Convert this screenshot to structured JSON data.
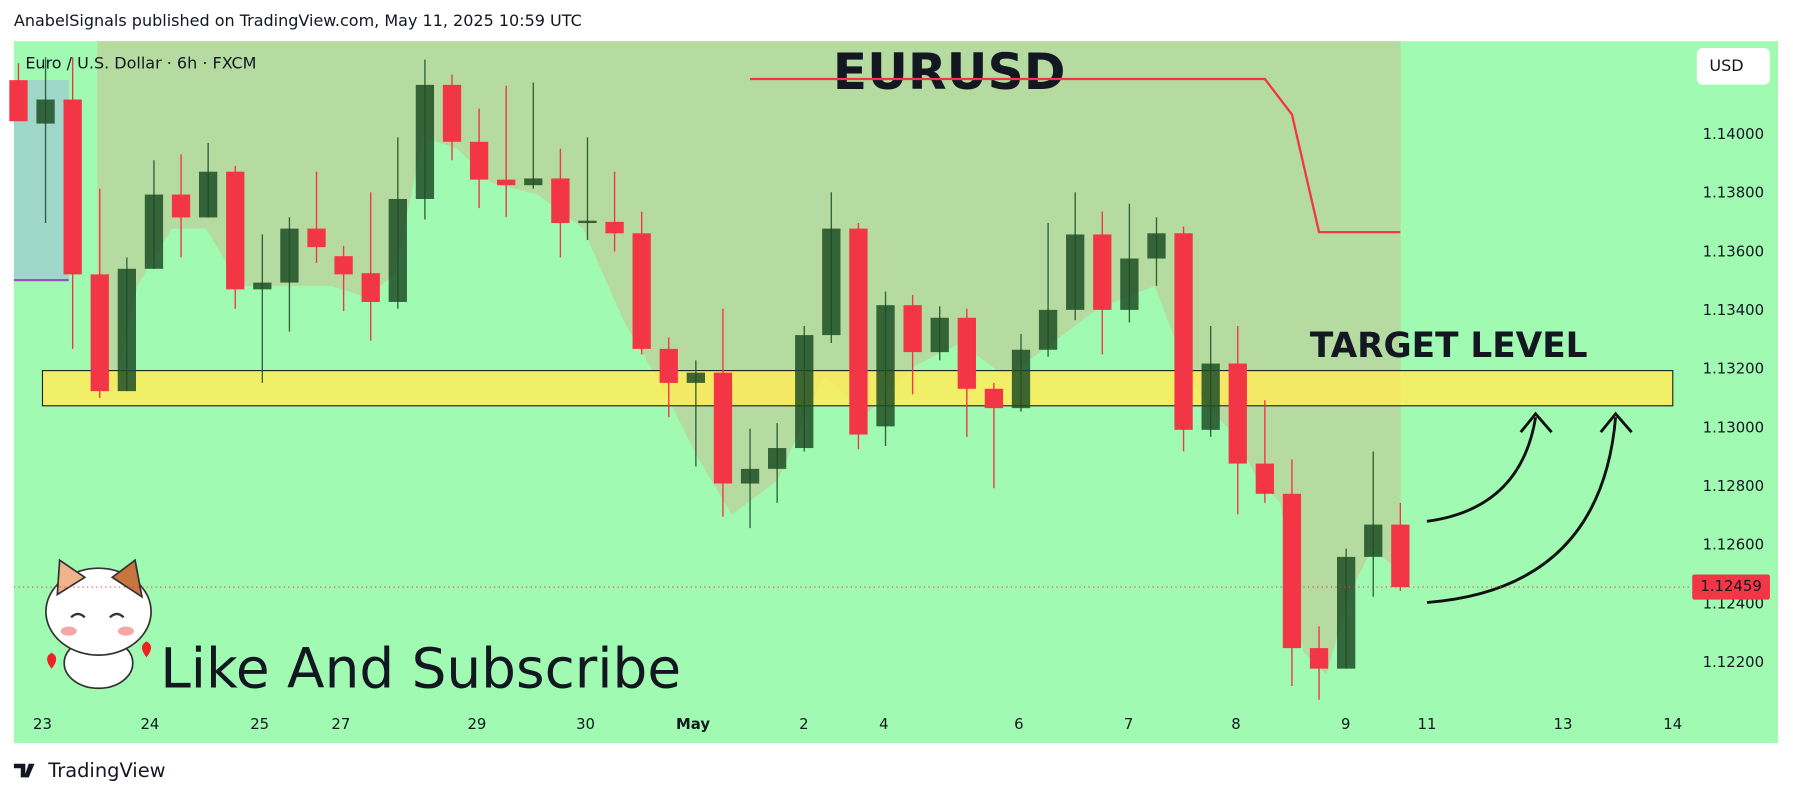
{
  "chart_data": {
    "type": "candlestick",
    "header": "AnabelSignals published on TradingView.com, May 11, 2025 10:59 UTC",
    "symbol": "Euro / U.S. Dollar · 6h · FXCM",
    "title": "EURUSD",
    "currency": "USD",
    "caption": "Like And Subscribe",
    "brand": "TradingView",
    "up_color": "#1e4d26",
    "down_color": "#f23645",
    "x_labels": [
      "23",
      "24",
      "25",
      "27",
      "29",
      "30",
      "May",
      "2",
      "4",
      "6",
      "7",
      "8",
      "9",
      "11",
      "13",
      "14"
    ],
    "candles": {
      "open": [
        1.14187,
        1.14039,
        1.14121,
        1.13525,
        1.13127,
        1.13544,
        1.13797,
        1.13719,
        1.13875,
        1.13474,
        1.13497,
        1.13681,
        1.13587,
        1.13529,
        1.13431,
        1.13782,
        1.14171,
        1.13977,
        1.13848,
        1.13829,
        1.13852,
        1.137,
        1.13704,
        1.13665,
        1.13271,
        1.13155,
        1.1319,
        1.12812,
        1.12862,
        1.12933,
        1.13318,
        1.13681,
        1.13007,
        1.1342,
        1.1326,
        1.13377,
        1.13135,
        1.13069,
        1.13268,
        1.13404,
        1.13661,
        1.13404,
        1.13579,
        1.13665,
        1.12995,
        1.13221,
        1.1288,
        1.12777,
        1.12251,
        1.12181,
        1.12562,
        1.12672
      ],
      "high": [
        1.14245,
        1.14265,
        1.14265,
        1.13817,
        1.13583,
        1.13914,
        1.13934,
        1.13973,
        1.13895,
        1.13661,
        1.1372,
        1.13875,
        1.13622,
        1.13805,
        1.13992,
        1.14257,
        1.14206,
        1.1409,
        1.14168,
        1.14179,
        1.13953,
        1.13992,
        1.13875,
        1.13739,
        1.1331,
        1.13232,
        1.13408,
        1.12999,
        1.13018,
        1.13349,
        1.13805,
        1.137,
        1.13466,
        1.13455,
        1.13416,
        1.13408,
        1.13155,
        1.13322,
        1.137,
        1.13805,
        1.13739,
        1.13766,
        1.1372,
        1.13688,
        1.13349,
        1.13349,
        1.13096,
        1.12894,
        1.12325,
        1.1259,
        1.12921,
        1.12746
      ],
      "low": [
        1.14047,
        1.137,
        1.13271,
        1.13104,
        1.13127,
        1.13544,
        1.13583,
        1.13719,
        1.13408,
        1.13155,
        1.1333,
        1.13564,
        1.134,
        1.13299,
        1.13408,
        1.13712,
        1.13914,
        1.13751,
        1.1372,
        1.13817,
        1.13583,
        1.13642,
        1.13603,
        1.13252,
        1.13038,
        1.1287,
        1.12699,
        1.1266,
        1.12746,
        1.12921,
        1.13291,
        1.12929,
        1.1294,
        1.13116,
        1.13232,
        1.12971,
        1.12796,
        1.13057,
        1.13244,
        1.13369,
        1.13252,
        1.13361,
        1.13486,
        1.12921,
        1.12971,
        1.12707,
        1.12746,
        1.12122,
        1.12075,
        1.12181,
        1.12426,
        1.12446
      ],
      "close": [
        1.14047,
        1.14121,
        1.13525,
        1.13127,
        1.13544,
        1.13797,
        1.13719,
        1.13875,
        1.13474,
        1.13497,
        1.13681,
        1.13618,
        1.13525,
        1.13431,
        1.13782,
        1.14171,
        1.13977,
        1.13848,
        1.13829,
        1.13852,
        1.137,
        1.13708,
        1.13665,
        1.13271,
        1.13155,
        1.1319,
        1.12812,
        1.12862,
        1.12933,
        1.13318,
        1.13681,
        1.12979,
        1.1342,
        1.1326,
        1.13377,
        1.13135,
        1.13069,
        1.13268,
        1.13404,
        1.13661,
        1.13404,
        1.13579,
        1.13665,
        1.12995,
        1.13221,
        1.1288,
        1.12777,
        1.12251,
        1.12181,
        1.12562,
        1.12672,
        1.12459
      ]
    },
    "indicator": {
      "color": "#f23645",
      "values": [
        null,
        null,
        null,
        null,
        null,
        null,
        null,
        null,
        null,
        null,
        null,
        null,
        null,
        null,
        null,
        null,
        null,
        null,
        null,
        null,
        null,
        null,
        null,
        null,
        null,
        null,
        null,
        1.14191,
        1.14191,
        1.14191,
        1.14191,
        1.14191,
        1.14191,
        1.14191,
        1.14191,
        1.14191,
        1.14191,
        1.14191,
        1.14191,
        1.14191,
        1.14191,
        1.14191,
        1.14191,
        1.14191,
        1.14191,
        1.14191,
        1.14191,
        1.1407,
        1.13669,
        1.13669,
        1.13669,
        1.13669
      ]
    },
    "target_zone": {
      "label": "TARGET LEVEL",
      "low": 1.13077,
      "high": 1.13197,
      "color": "#ffeb5a"
    },
    "last_price": {
      "value": 1.12459,
      "label": "1.12459"
    },
    "ylim": [
      1.12044,
      1.1432
    ],
    "yticks": [
      {
        "value": 1.14,
        "label": "1.14000"
      },
      {
        "value": 1.138,
        "label": "1.13800"
      },
      {
        "value": 1.136,
        "label": "1.13600"
      },
      {
        "value": 1.134,
        "label": "1.13400"
      },
      {
        "value": 1.132,
        "label": "1.13200"
      },
      {
        "value": 1.13,
        "label": "1.13000"
      },
      {
        "value": 1.128,
        "label": "1.12800"
      },
      {
        "value": 1.126,
        "label": "1.12600"
      },
      {
        "value": 1.124,
        "label": "1.12400"
      },
      {
        "value": 1.122,
        "label": "1.12200"
      }
    ]
  }
}
